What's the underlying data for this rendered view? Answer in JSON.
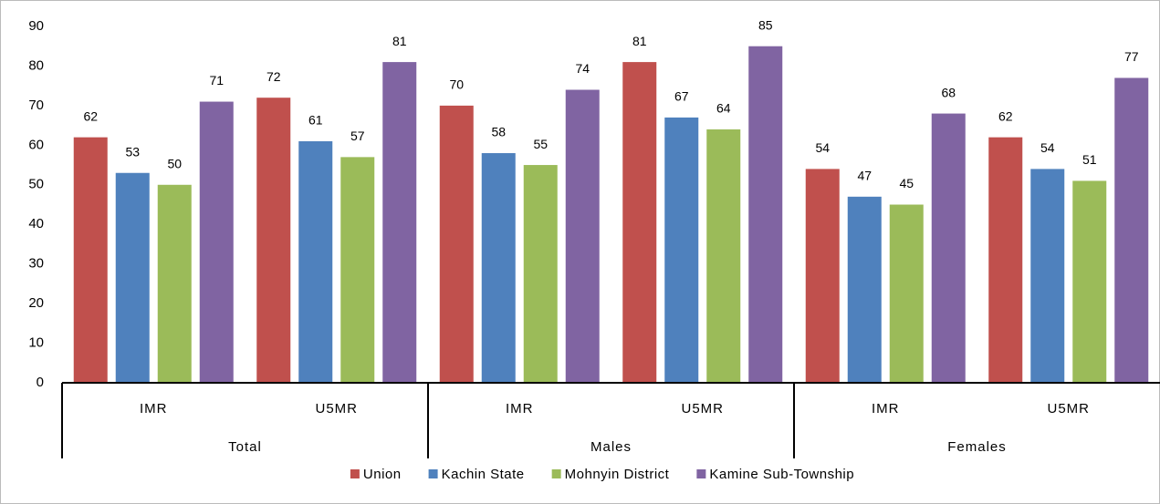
{
  "chart_data": {
    "type": "bar",
    "categories": [
      "IMR",
      "U5MR",
      "IMR",
      "U5MR",
      "IMR",
      "U5MR"
    ],
    "groups": [
      "Total",
      "Males",
      "Females"
    ],
    "series": [
      {
        "name": "Union",
        "color": "#c0504d",
        "values": [
          62,
          72,
          70,
          81,
          54,
          62
        ]
      },
      {
        "name": "Kachin State",
        "color": "#4f81bd",
        "values": [
          53,
          61,
          58,
          67,
          47,
          54
        ]
      },
      {
        "name": "Mohnyin District",
        "color": "#9bbb59",
        "values": [
          50,
          57,
          55,
          64,
          45,
          51
        ]
      },
      {
        "name": "Kamine Sub-Township",
        "color": "#8064a2",
        "values": [
          71,
          81,
          74,
          85,
          68,
          77
        ]
      }
    ],
    "ylim": [
      0,
      90
    ],
    "yticks": [
      0,
      10,
      20,
      30,
      40,
      50,
      60,
      70,
      80,
      90
    ],
    "grid": false,
    "legend": "bottom"
  }
}
